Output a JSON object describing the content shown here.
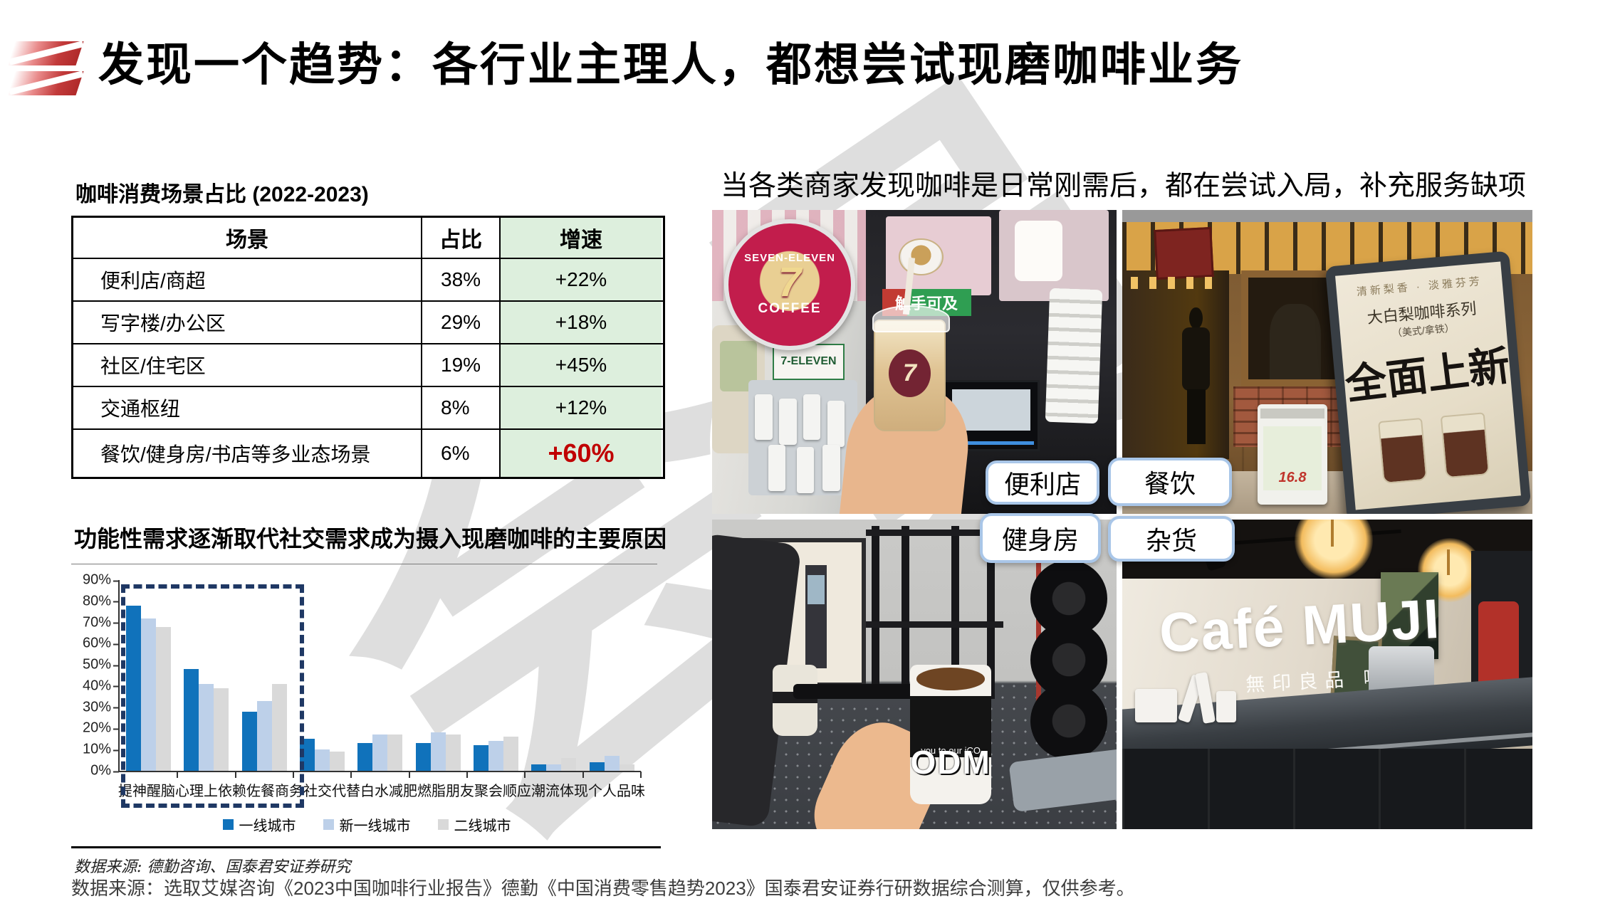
{
  "header": {
    "title": "发现一个趋势：各行业主理人，都想尝试现磨咖啡业务"
  },
  "left": {
    "table_title": "咖啡消费场景占比 (2022-2023)",
    "table": {
      "headers": [
        "场景",
        "占比",
        "增速"
      ],
      "rows": [
        {
          "scene": "便利店/商超",
          "share": "38%",
          "growth": "+22%"
        },
        {
          "scene": "写字楼/办公区",
          "share": "29%",
          "growth": "+18%"
        },
        {
          "scene": "社区/住宅区",
          "share": "19%",
          "growth": "+45%"
        },
        {
          "scene": "交通枢纽",
          "share": "8%",
          "growth": "+12%"
        },
        {
          "scene": "餐饮/健身房/书店等多业态场景",
          "share": "6%",
          "growth": "+60%"
        }
      ]
    },
    "chart_source": "数据来源: 德勤咨询、国泰君安证券研究"
  },
  "chart_data": {
    "type": "bar",
    "title": "功能性需求逐渐取代社交需求成为摄入现磨咖啡的主要原因",
    "categories": [
      "提神醒脑",
      "心理上依赖",
      "佐餐",
      "商务社交",
      "代替白水",
      "减肥燃脂",
      "朋友聚会",
      "顺应潮流",
      "体现个人品味"
    ],
    "series": [
      {
        "name": "一线城市",
        "color": "#1072BB",
        "values": [
          78,
          48,
          28,
          15,
          13,
          13,
          12,
          3,
          4
        ]
      },
      {
        "name": "新一线城市",
        "color": "#BDD0E9",
        "values": [
          72,
          41,
          33,
          10,
          17,
          18,
          14,
          3,
          7
        ]
      },
      {
        "name": "二线城市",
        "color": "#D9D9D9",
        "values": [
          68,
          39,
          41,
          9,
          17,
          17,
          16,
          6,
          3
        ]
      }
    ],
    "xlabel": "",
    "ylabel": "",
    "ylim": [
      0,
      90
    ],
    "ytick_step": 10,
    "grid": false,
    "legend_position": "bottom",
    "highlight_box_categories": [
      "提神醒脑",
      "心理上依赖",
      "佐餐"
    ]
  },
  "right": {
    "heading": "当各类商家发现咖啡是日常刚需后，都在尝试入局，补充服务缺项",
    "photo_labels": [
      "便利店",
      "餐饮",
      "健身房",
      "杂货"
    ],
    "photos": {
      "seven_eleven": {
        "logo_top": "SEVEN-ELEVEN",
        "logo_seven": "7",
        "logo_bottom": "COFFEE",
        "sign_text": "触手可及",
        "store_sign": "7-ELEVEN",
        "cup_seven": "7"
      },
      "restaurant": {
        "poster_header": "清新梨香 · 淡雅芬芳",
        "poster_series": "大白梨咖啡系列",
        "poster_sub": "（美式/拿铁）",
        "poster_title": "全面上新",
        "price": "16.8"
      },
      "gym": {
        "cup_band_text": "you to our iCO",
        "cup_text": "ODM"
      },
      "muji": {
        "wall_title": "Café MUJI",
        "wall_subtitle": "無印良品 咖啡"
      }
    }
  },
  "footer": {
    "source": "数据来源：选取艾媒咨询《2023中国咖啡行业报告》德勤《中国消费零售趋势2023》国泰君安证券行研数据综合测算，仅供参考。"
  },
  "watermark": {
    "text": "会员"
  },
  "colors": {
    "accent_red": "#C00000",
    "growth_col_bg": "#DDEFDD",
    "dash_box": "#1F3864",
    "label_border": "#A9C6E8",
    "logo_red": "#C23A3A"
  }
}
